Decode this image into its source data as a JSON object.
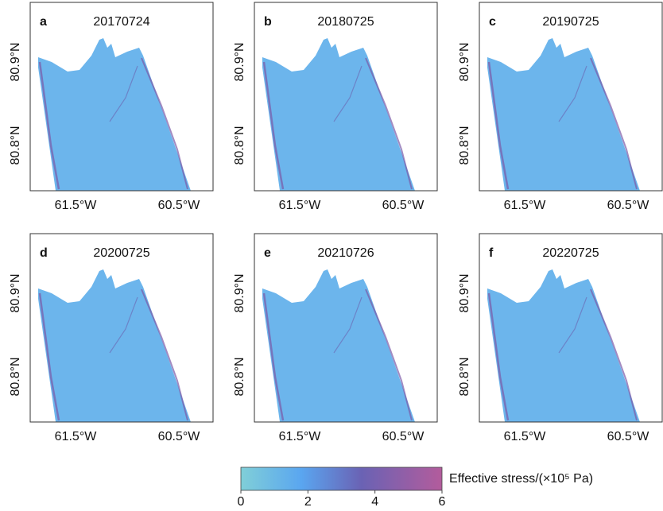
{
  "panels": [
    {
      "letter": "a",
      "date": "20170724",
      "yticks": [
        "80.9°N",
        "80.8°N"
      ],
      "xticks": [
        "61.5°W",
        "60.5°W"
      ]
    },
    {
      "letter": "b",
      "date": "20180725",
      "yticks": [
        "80.9°N",
        "80.8°N"
      ],
      "xticks": [
        "61.5°W",
        "60.5°W"
      ]
    },
    {
      "letter": "c",
      "date": "20190725",
      "yticks": [
        "80.9°N",
        "80.8°N"
      ],
      "xticks": [
        "61.5°W",
        "60.5°W"
      ]
    },
    {
      "letter": "d",
      "date": "20200725",
      "yticks": [
        "80.9°N",
        "80.8°N"
      ],
      "xticks": [
        "61.5°W",
        "60.5°W"
      ]
    },
    {
      "letter": "e",
      "date": "20210726",
      "yticks": [
        "80.9°N",
        "80.8°N"
      ],
      "xticks": [
        "61.5°W",
        "60.5°W"
      ]
    },
    {
      "letter": "f",
      "date": "20220725",
      "yticks": [
        "80.9°N",
        "80.8°N"
      ],
      "xticks": [
        "61.5°W",
        "60.5°W"
      ]
    }
  ],
  "colorbar": {
    "label": "Effective stress/(×10⁵ Pa)",
    "lim": [
      0,
      6
    ],
    "ticks": [
      0,
      2,
      4,
      6
    ]
  }
}
